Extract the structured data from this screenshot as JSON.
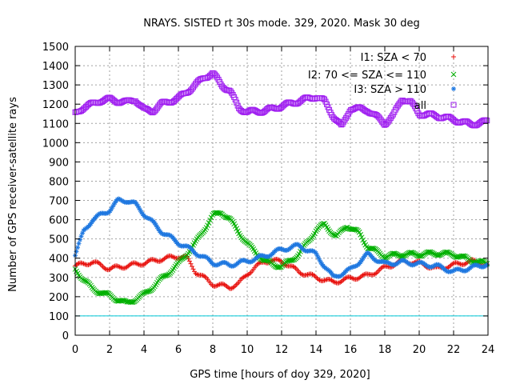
{
  "chart_data": {
    "type": "scatter",
    "title": "NRAYS. SISTED rt 30s mode. 329, 2020. Mask 30 deg",
    "xlabel": "GPS time [hours of doy 329, 2020]",
    "ylabel": "Number of GPS receiver-satellite rays",
    "xlim": [
      0,
      24
    ],
    "ylim": [
      0,
      1500
    ],
    "xticks": [
      "0",
      "2",
      "4",
      "6",
      "8",
      "10",
      "12",
      "14",
      "16",
      "18",
      "20",
      "22",
      "24"
    ],
    "yticks": [
      "0",
      "100",
      "200",
      "300",
      "400",
      "500",
      "600",
      "700",
      "800",
      "900",
      "1000",
      "1100",
      "1200",
      "1300",
      "1400",
      "1500"
    ],
    "grid": true,
    "legend_position": "top-right",
    "reference_line": {
      "y": 100,
      "color": "#00c8d8"
    },
    "series": [
      {
        "name": "I1: SZA < 70",
        "marker": "+",
        "color": "#e8120e",
        "x": [
          0,
          1,
          2,
          3,
          4,
          5,
          6,
          6.5,
          7,
          8,
          9,
          9.5,
          10,
          11,
          12,
          13,
          14,
          15,
          16,
          17,
          18,
          19,
          20,
          21,
          22,
          23,
          24
        ],
        "y": [
          360,
          380,
          345,
          360,
          375,
          395,
          410,
          400,
          330,
          265,
          250,
          265,
          320,
          385,
          385,
          330,
          300,
          275,
          295,
          310,
          350,
          385,
          375,
          345,
          365,
          385,
          365
        ]
      },
      {
        "name": "I2: 70 <= SZA <= 110",
        "marker": "x",
        "color": "#00b000",
        "x": [
          0,
          1,
          2,
          3,
          4,
          5,
          6,
          7,
          8,
          8.5,
          9,
          10,
          11,
          12,
          13,
          14,
          14.5,
          15.2,
          15.8,
          16.5,
          17,
          18,
          19,
          20,
          21,
          22,
          23,
          24
        ],
        "y": [
          340,
          240,
          205,
          165,
          210,
          290,
          370,
          480,
          620,
          640,
          600,
          475,
          385,
          355,
          420,
          545,
          575,
          510,
          570,
          530,
          460,
          410,
          420,
          420,
          425,
          420,
          390,
          370
        ]
      },
      {
        "name": "I3: SZA > 110",
        "marker": "*",
        "color": "#1f78e0",
        "x": [
          0,
          0.5,
          1,
          2,
          2.5,
          3,
          3.5,
          4,
          5,
          6,
          7,
          8,
          9,
          10,
          11,
          12,
          13,
          14,
          15,
          16,
          17,
          18,
          19,
          20,
          21,
          22,
          23,
          24
        ],
        "y": [
          420,
          540,
          600,
          650,
          700,
          700,
          680,
          630,
          540,
          480,
          430,
          375,
          365,
          385,
          410,
          445,
          465,
          420,
          300,
          340,
          420,
          370,
          380,
          370,
          360,
          330,
          350,
          370
        ]
      },
      {
        "name": "all",
        "marker": "square",
        "color": "#a020f0",
        "x": [
          0,
          0.5,
          1,
          1.5,
          2,
          2.5,
          3,
          3.5,
          4,
          4.5,
          5,
          6,
          6.5,
          7,
          7.5,
          8,
          8.5,
          9,
          9.5,
          10,
          11,
          12,
          13,
          14,
          14.5,
          15,
          15.5,
          16,
          17,
          18,
          18.5,
          19,
          19.5,
          20,
          21,
          22,
          23,
          24
        ],
        "y": [
          1150,
          1185,
          1200,
          1220,
          1225,
          1215,
          1210,
          1225,
          1170,
          1165,
          1200,
          1230,
          1265,
          1300,
          1340,
          1360,
          1300,
          1270,
          1180,
          1160,
          1165,
          1190,
          1215,
          1240,
          1215,
          1140,
          1080,
          1180,
          1170,
          1100,
          1140,
          1230,
          1210,
          1150,
          1140,
          1120,
          1095,
          1110
        ]
      }
    ]
  }
}
